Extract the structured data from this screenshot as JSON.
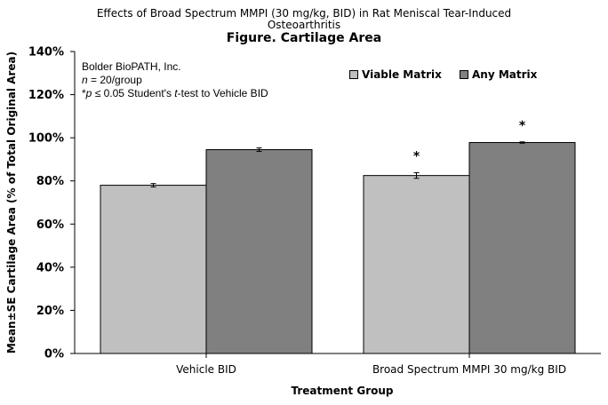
{
  "header": {
    "title_line1": "Effects of Broad Spectrum MMPI (30 mg/kg, BID) in Rat Meniscal Tear-Induced",
    "title_line2": "Osteoarthritis",
    "subtitle": "Figure. Cartilage Area"
  },
  "notes": {
    "lab": "Bolder BioPATH, Inc.",
    "n_symbol": "n",
    "n_text": " = 20/group",
    "sig_star": "*",
    "sig_p": "p",
    "sig_mid": " ≤ 0.05 Student's ",
    "sig_t": "t",
    "sig_end": "-test to Vehicle BID"
  },
  "colors": {
    "viable": "#c0c0c0",
    "any": "#808080",
    "axis": "#000000"
  },
  "chart_data": {
    "type": "bar",
    "categories": [
      "Vehicle BID",
      "Broad Spectrum MMPI 30 mg/kg BID"
    ],
    "series": [
      {
        "name": "Viable Matrix",
        "values": [
          78,
          82.5
        ],
        "errors": [
          0.8,
          1.3
        ],
        "significant": [
          false,
          true
        ]
      },
      {
        "name": "Any Matrix",
        "values": [
          94.5,
          97.8
        ],
        "errors": [
          0.8,
          0.3
        ],
        "significant": [
          false,
          true
        ]
      }
    ],
    "xlabel": "Treatment Group",
    "ylabel": "Mean±SE Cartilage Area (% of Total Original Area)",
    "ylim": [
      0,
      140
    ],
    "yticks": [
      0,
      20,
      40,
      60,
      80,
      100,
      120,
      140
    ],
    "ytick_labels": [
      "0%",
      "20%",
      "40%",
      "60%",
      "80%",
      "100%",
      "120%",
      "140%"
    ],
    "significance_marker": "*",
    "legend_position": "top-right",
    "grid": false
  }
}
